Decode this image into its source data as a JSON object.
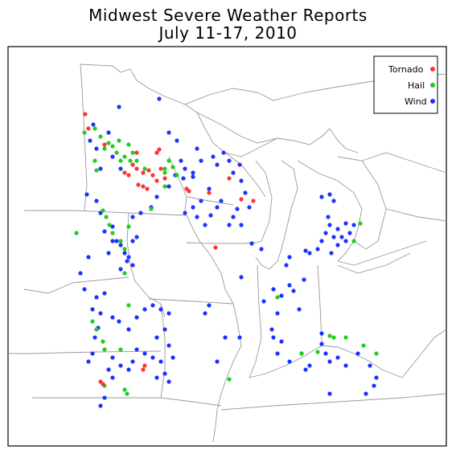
{
  "title": {
    "line1": "Midwest Severe Weather Reports",
    "line2": "July 11-17, 2010"
  },
  "legend": [
    {
      "label": "Tornado",
      "color": "#ff3333"
    },
    {
      "label": "Hail",
      "color": "#22cc22"
    },
    {
      "label": "Wind",
      "color": "#1a33ff"
    }
  ],
  "colors": {
    "border": "#000000",
    "state_lines": "#999999",
    "tornado": "#ff3333",
    "hail": "#22cc22",
    "wind": "#1a33ff"
  }
}
